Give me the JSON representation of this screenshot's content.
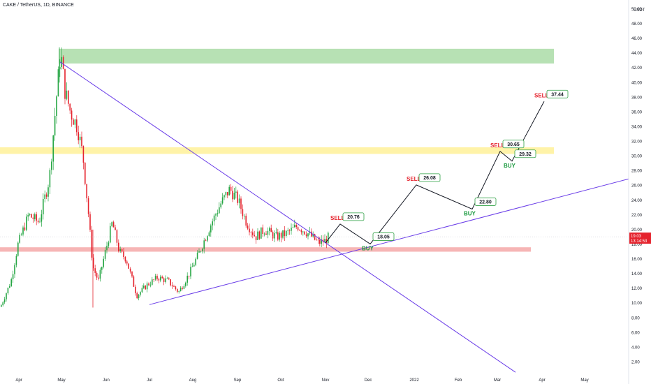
{
  "chart_data": {
    "type": "candlestick",
    "title": "CAKE / TetherUS, 1D, BINANCE",
    "currency": "USDT",
    "y_ticks": [
      "50.00",
      "48.00",
      "46.00",
      "44.00",
      "42.00",
      "40.00",
      "38.00",
      "36.00",
      "34.00",
      "32.00",
      "30.00",
      "28.00",
      "26.00",
      "24.00",
      "22.00",
      "20.00",
      "18.00",
      "16.00",
      "14.00",
      "12.00",
      "10.00",
      "8.00",
      "6.00",
      "4.00",
      "2.00"
    ],
    "ylim": [
      0,
      51.6
    ],
    "x_ticks": [
      "Apr",
      "May",
      "Jun",
      "Jul",
      "Aug",
      "Sep",
      "Oct",
      "Nov",
      "Dec",
      "2022",
      "Feb",
      "Mar",
      "Apr",
      "May"
    ],
    "current_price": {
      "value": "19.03",
      "countdown": "13:14:53",
      "color": "#e5232d"
    },
    "zones": [
      {
        "kind": "resistance",
        "from": 42.6,
        "to": 44.6,
        "color": "#b7e1b4"
      },
      {
        "kind": "mid",
        "from": 30.3,
        "to": 31.2,
        "color": "#fff3a8"
      },
      {
        "kind": "support",
        "from": 17.0,
        "to": 17.6,
        "color": "#f6b5b5"
      }
    ],
    "trendlines": [
      {
        "kind": "descending",
        "from": {
          "x": "May",
          "y": 42.8
        },
        "to": {
          "x": "Apr",
          "y": 0.6
        },
        "color": "#6a3de8"
      },
      {
        "kind": "ascending",
        "from": {
          "x": "Jul",
          "y": 9.8
        },
        "to": {
          "x": "May",
          "y": 26.9
        },
        "color": "#6a3de8"
      }
    ],
    "projection": [
      {
        "label": "SELL",
        "price": "20.76"
      },
      {
        "label": "BUY",
        "price": "18.05"
      },
      {
        "label": "SELL",
        "price": "26.08"
      },
      {
        "label": "BUY",
        "price": "22.80"
      },
      {
        "label": "SELL",
        "price": "30.65"
      },
      {
        "label": "BUY",
        "price": "29.32"
      },
      {
        "label": "SELL",
        "price": "37.44"
      }
    ],
    "up_color": "#26a644",
    "down_color": "#e5232d"
  }
}
